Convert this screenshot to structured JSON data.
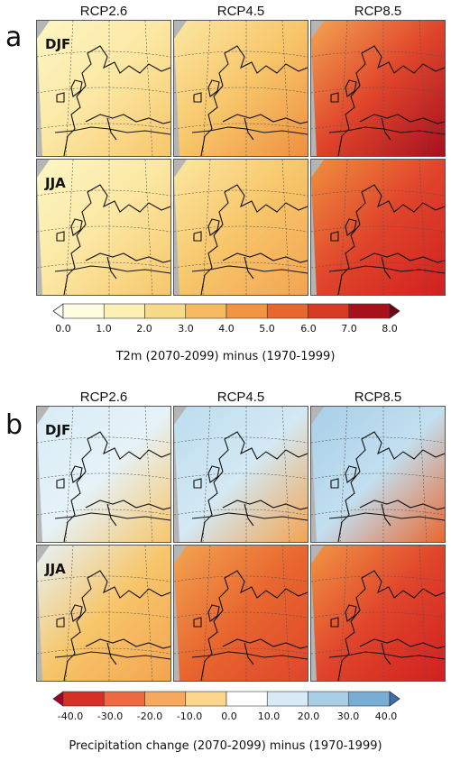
{
  "panels": [
    {
      "letter": "a",
      "columns": [
        "RCP2.6",
        "RCP4.5",
        "RCP8.5"
      ],
      "rows": [
        {
          "season": "DJF",
          "fills": [
            [
              "#fdf6c4",
              "#fbe7a2",
              "#f7c66a"
            ],
            [
              "#fbe7a2",
              "#f7c66a",
              "#ef8f3f"
            ],
            [
              "#f3a451",
              "#e0452b",
              "#a7101f"
            ]
          ]
        },
        {
          "season": "JJA",
          "fills": [
            [
              "#fdf6c4",
              "#fbe7a2",
              "#f7c66a"
            ],
            [
              "#fbe7a2",
              "#f7c66a",
              "#f3a451"
            ],
            [
              "#ef8f3f",
              "#e0452b",
              "#d12020"
            ]
          ]
        }
      ],
      "colorbar": {
        "colors": [
          "#fffde0",
          "#fdf0b5",
          "#f9d98a",
          "#f6bb62",
          "#f19543",
          "#e8672f",
          "#d93a25",
          "#a9121c"
        ],
        "under": "#ffffff",
        "over": "#6e0018",
        "ticks": [
          "0.0",
          "1.0",
          "2.0",
          "3.0",
          "4.0",
          "5.0",
          "6.0",
          "7.0",
          "8.0"
        ]
      },
      "caption": "T2m (2070-2099) minus (1970-1999)"
    },
    {
      "letter": "b",
      "columns": [
        "RCP2.6",
        "RCP4.5",
        "RCP8.5"
      ],
      "rows": [
        {
          "season": "DJF",
          "fills": [
            [
              "#d8ecf6",
              "#e6f2f8",
              "#f7c66a"
            ],
            [
              "#bcdcee",
              "#d3e9f4",
              "#f3a451"
            ],
            [
              "#a8cfe7",
              "#c2dff0",
              "#e8672f"
            ]
          ]
        },
        {
          "season": "JJA",
          "fills": [
            [
              "#e6f2f8",
              "#f7c66a",
              "#f3a451"
            ],
            [
              "#f3a451",
              "#e8672f",
              "#e0452b"
            ],
            [
              "#f19543",
              "#e0452b",
              "#d12020"
            ]
          ]
        }
      ],
      "colorbar": {
        "colors": [
          "#d73027",
          "#ee6a42",
          "#f7a85c",
          "#fdd68c",
          "#ffffff",
          "#d7eaf5",
          "#a9cfe6",
          "#78aed4"
        ],
        "under": "#a5001f",
        "over": "#3b6fae",
        "ticks": [
          "-40.0",
          "-30.0",
          "-20.0",
          "-10.0",
          "0.0",
          "10.0",
          "20.0",
          "30.0",
          "40.0"
        ]
      },
      "caption": "Precipitation change (2070-2099) minus (1970-1999)"
    }
  ]
}
